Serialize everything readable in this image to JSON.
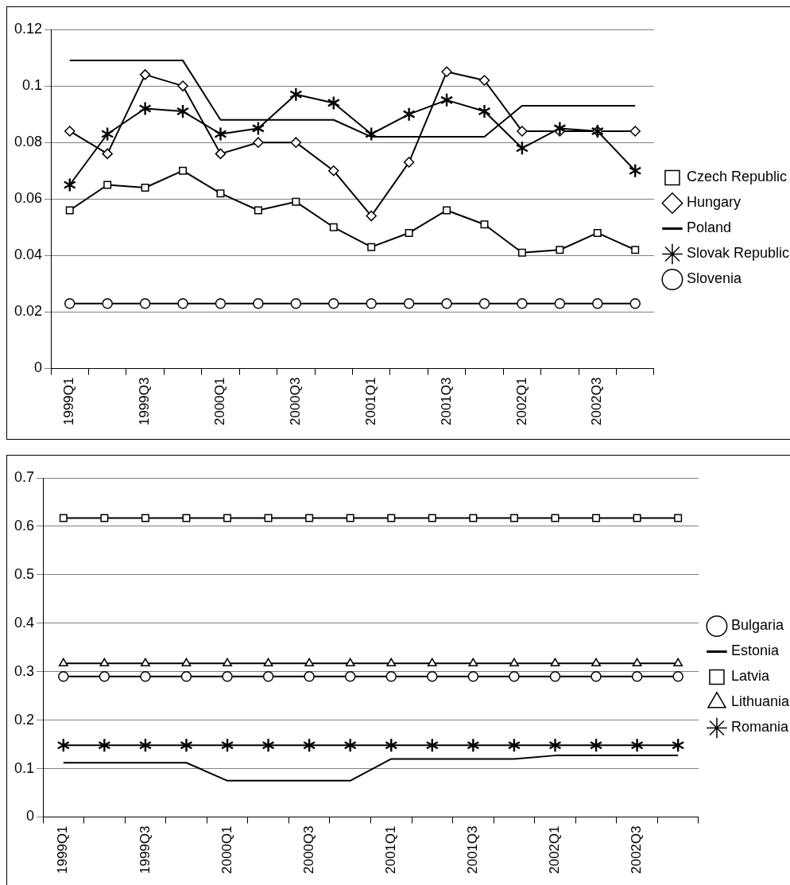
{
  "chart_data": [
    {
      "type": "line",
      "categories": [
        "1999Q1",
        null,
        "1999Q3",
        null,
        "2000Q1",
        null,
        "2000Q3",
        null,
        "2001Q1",
        null,
        "2001Q3",
        null,
        "2002Q1",
        null,
        "2002Q3",
        null
      ],
      "ylim": [
        0,
        0.12
      ],
      "yticks": [
        0,
        0.02,
        0.04,
        0.06,
        0.08,
        0.1,
        0.12
      ],
      "grid": "y",
      "legend": "right",
      "line_style": "solid",
      "series": [
        {
          "name": "Czech Republic",
          "color": "#000000",
          "marker": "square",
          "values": [
            0.056,
            0.065,
            0.064,
            0.07,
            0.062,
            0.056,
            0.059,
            0.05,
            0.043,
            0.048,
            0.056,
            0.051,
            0.041,
            0.042,
            0.048,
            0.042
          ]
        },
        {
          "name": "Hungary",
          "color": "#000000",
          "marker": "diamond",
          "values": [
            0.084,
            0.076,
            0.104,
            0.1,
            0.076,
            0.08,
            0.08,
            0.07,
            0.054,
            0.073,
            0.105,
            0.102,
            0.084,
            0.084,
            0.084,
            0.084
          ]
        },
        {
          "name": "Poland",
          "color": "#000000",
          "marker": "none",
          "values": [
            0.109,
            0.109,
            0.109,
            0.109,
            0.088,
            0.088,
            0.088,
            0.088,
            0.082,
            0.082,
            0.082,
            0.082,
            0.093,
            0.093,
            0.093,
            0.093
          ]
        },
        {
          "name": "Slovak Republic",
          "color": "#000000",
          "marker": "cross",
          "values": [
            0.065,
            0.083,
            0.092,
            0.091,
            0.083,
            0.085,
            0.097,
            0.094,
            0.083,
            0.09,
            0.095,
            0.091,
            0.078,
            0.085,
            0.084,
            0.07
          ]
        },
        {
          "name": "Slovenia",
          "color": "#000000",
          "marker": "circle",
          "values": [
            0.023,
            0.023,
            0.023,
            0.023,
            0.023,
            0.023,
            0.023,
            0.023,
            0.023,
            0.023,
            0.023,
            0.023,
            0.023,
            0.023,
            0.023,
            0.023
          ]
        }
      ]
    },
    {
      "type": "line",
      "categories": [
        "1999Q1",
        null,
        "1999Q3",
        null,
        "2000Q1",
        null,
        "2000Q3",
        null,
        "2001Q1",
        null,
        "2001Q3",
        null,
        "2002Q1",
        null,
        "2002Q3",
        null
      ],
      "ylim": [
        0,
        0.7
      ],
      "yticks": [
        0,
        0.1,
        0.2,
        0.3,
        0.4,
        0.5,
        0.6,
        0.7
      ],
      "grid": "y",
      "legend": "right",
      "line_style": "solid",
      "series": [
        {
          "name": "Bulgaria",
          "color": "#000000",
          "marker": "circle",
          "values": [
            0.29,
            0.29,
            0.29,
            0.29,
            0.29,
            0.29,
            0.29,
            0.29,
            0.29,
            0.29,
            0.29,
            0.29,
            0.29,
            0.29,
            0.29,
            0.29
          ]
        },
        {
          "name": "Estonia",
          "color": "#000000",
          "marker": "none",
          "values": [
            0.112,
            0.112,
            0.112,
            0.112,
            0.075,
            0.075,
            0.075,
            0.075,
            0.12,
            0.12,
            0.12,
            0.12,
            0.127,
            0.127,
            0.127,
            0.127
          ]
        },
        {
          "name": "Latvia",
          "color": "#000000",
          "marker": "square",
          "values": [
            0.617,
            0.617,
            0.617,
            0.617,
            0.617,
            0.617,
            0.617,
            0.617,
            0.617,
            0.617,
            0.617,
            0.617,
            0.617,
            0.617,
            0.617,
            0.617
          ]
        },
        {
          "name": "Lithuania",
          "color": "#000000",
          "marker": "triangle",
          "values": [
            0.317,
            0.317,
            0.317,
            0.317,
            0.317,
            0.317,
            0.317,
            0.317,
            0.317,
            0.317,
            0.317,
            0.317,
            0.317,
            0.317,
            0.317,
            0.317
          ]
        },
        {
          "name": "Romania",
          "color": "#000000",
          "marker": "cross",
          "values": [
            0.148,
            0.148,
            0.148,
            0.148,
            0.148,
            0.148,
            0.148,
            0.148,
            0.148,
            0.148,
            0.148,
            0.148,
            0.148,
            0.148,
            0.148,
            0.148
          ]
        }
      ]
    }
  ]
}
